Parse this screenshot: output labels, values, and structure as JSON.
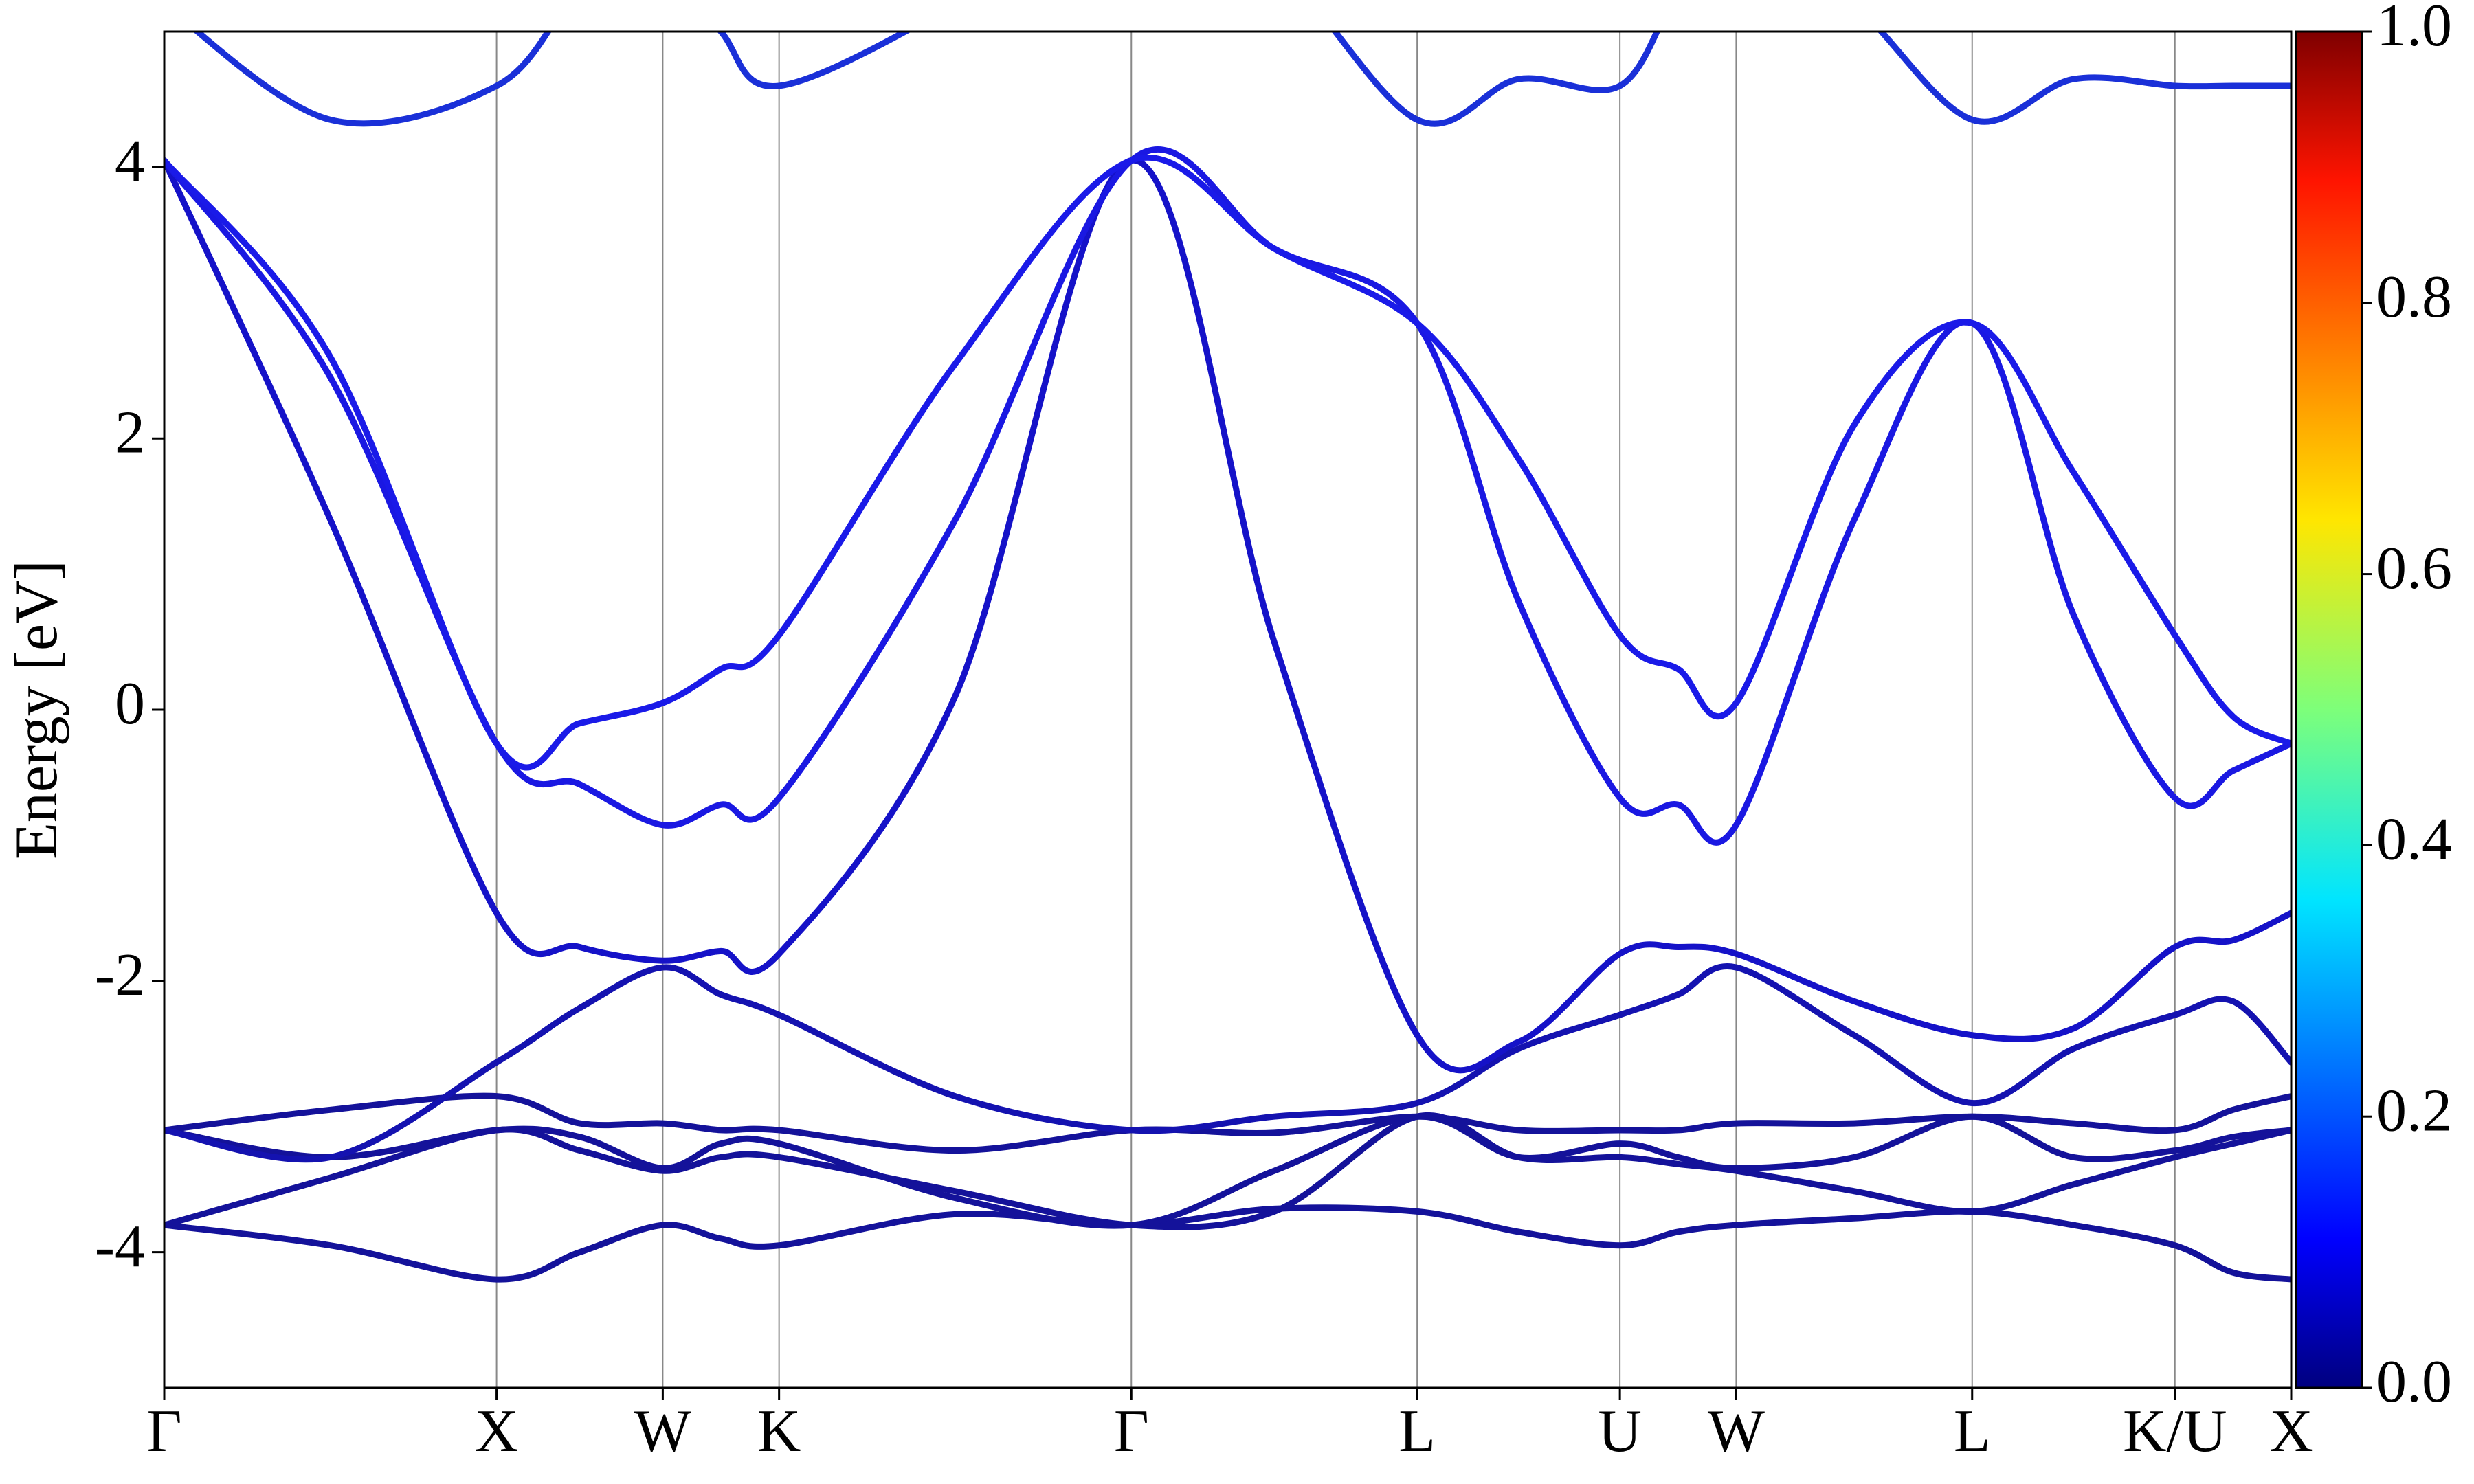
{
  "chart_data": {
    "type": "line",
    "ylabel": "Energy [eV]",
    "xlim": [
      0,
      6.4
    ],
    "ylim": [
      -5,
      5
    ],
    "yticks": [
      -4,
      -2,
      0,
      2,
      4
    ],
    "xticks": [
      {
        "value": 0,
        "label": "Γ"
      },
      {
        "value": 1.0,
        "label": "X"
      },
      {
        "value": 1.5,
        "label": "W"
      },
      {
        "value": 1.85,
        "label": "K"
      },
      {
        "value": 2.91,
        "label": "Γ"
      },
      {
        "value": 3.77,
        "label": "L"
      },
      {
        "value": 4.38,
        "label": "U"
      },
      {
        "value": 4.73,
        "label": "W"
      },
      {
        "value": 5.44,
        "label": "L"
      },
      {
        "value": 6.05,
        "label": "K/U"
      },
      {
        "value": 6.4,
        "label": "X"
      }
    ],
    "grid": true,
    "x": [
      0,
      0.5,
      1.0,
      1.25,
      1.5,
      1.675,
      1.85,
      2.38,
      2.91,
      3.34,
      3.77,
      4.075,
      4.38,
      4.555,
      4.73,
      5.085,
      5.44,
      5.745,
      6.05,
      6.225,
      6.4
    ],
    "series": [
      {
        "color": "#14129a",
        "values": [
          -3.8,
          -3.95,
          -4.2,
          -4.0,
          -3.8,
          -3.9,
          -3.95,
          -3.72,
          -3.8,
          -3.68,
          -3.7,
          -3.85,
          -3.95,
          -3.85,
          -3.8,
          -3.75,
          -3.7,
          -3.8,
          -3.95,
          -4.15,
          -4.2
        ]
      },
      {
        "color": "#14129a",
        "values": [
          -3.8,
          -3.45,
          -3.1,
          -3.25,
          -3.4,
          -3.3,
          -3.3,
          -3.55,
          -3.8,
          -3.7,
          -3.0,
          -3.3,
          -3.3,
          -3.35,
          -3.4,
          -3.55,
          -3.7,
          -3.5,
          -3.3,
          -3.2,
          -3.1
        ]
      },
      {
        "color": "#14129a",
        "values": [
          -3.1,
          -3.3,
          -3.1,
          -3.15,
          -3.38,
          -3.2,
          -3.2,
          -3.6,
          -3.8,
          -3.4,
          -3.0,
          -3.3,
          -3.2,
          -3.3,
          -3.38,
          -3.3,
          -3.0,
          -3.3,
          -3.25,
          -3.15,
          -3.1
        ]
      },
      {
        "color": "#14129a",
        "values": [
          -3.1,
          -2.95,
          -2.85,
          -3.05,
          -3.05,
          -3.1,
          -3.1,
          -3.25,
          -3.1,
          -3.12,
          -3.0,
          -3.1,
          -3.1,
          -3.1,
          -3.05,
          -3.05,
          -3.0,
          -3.05,
          -3.1,
          -2.95,
          -2.85
        ]
      },
      {
        "color": "#1412b0",
        "values": [
          -3.1,
          -3.3,
          -2.6,
          -2.2,
          -1.9,
          -2.1,
          -2.25,
          -2.85,
          -3.1,
          -3.0,
          -2.9,
          -2.5,
          -2.25,
          -2.1,
          -1.9,
          -2.4,
          -2.9,
          -2.5,
          -2.25,
          -2.15,
          -2.6
        ]
      },
      {
        "color": "#1512c8",
        "values": [
          4.05,
          1.4,
          -1.5,
          -1.75,
          -1.85,
          -1.78,
          -1.8,
          0.1,
          4.05,
          0.5,
          -2.4,
          -2.45,
          -1.8,
          -1.75,
          -1.8,
          -2.15,
          -2.4,
          -2.35,
          -1.75,
          -1.7,
          -1.5
        ]
      },
      {
        "color": "#1a18e2",
        "values": [
          4.05,
          2.45,
          -0.25,
          -0.55,
          -0.85,
          -0.7,
          -0.65,
          1.4,
          4.05,
          3.4,
          2.85,
          0.8,
          -0.65,
          -0.7,
          -0.85,
          1.4,
          2.85,
          0.7,
          -0.65,
          -0.45,
          -0.25
        ]
      },
      {
        "color": "#1a1ae8",
        "values": [
          4.05,
          2.6,
          -0.25,
          -0.1,
          0.05,
          0.3,
          0.55,
          2.55,
          4.05,
          3.4,
          2.85,
          1.85,
          0.55,
          0.3,
          0.05,
          2.1,
          2.85,
          1.75,
          0.55,
          -0.05,
          -0.25
        ]
      },
      {
        "color": "#1a30d8",
        "values": [
          5.2,
          4.35,
          4.6,
          5.3,
          5.6,
          5.0,
          4.6,
          5.2,
          6.0,
          5.5,
          4.35,
          4.65,
          4.6,
          5.3,
          5.8,
          5.2,
          4.35,
          4.65,
          4.6,
          4.6,
          4.6
        ]
      }
    ],
    "colorbar": {
      "colormap": "jet",
      "lim": [
        0,
        1
      ],
      "ticks": [
        {
          "value": 0,
          "label": "0.0"
        },
        {
          "value": 0.2,
          "label": "0.2"
        },
        {
          "value": 0.4,
          "label": "0.4"
        },
        {
          "value": 0.6,
          "label": "0.6"
        },
        {
          "value": 0.8,
          "label": "0.8"
        },
        {
          "value": 1.0,
          "label": "1.0"
        }
      ]
    }
  }
}
